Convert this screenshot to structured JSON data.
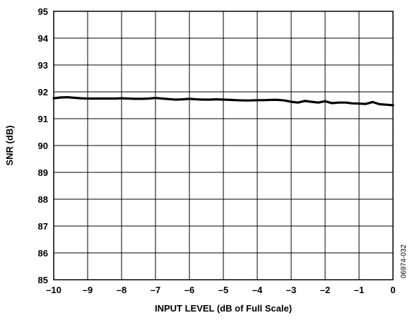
{
  "chart_data": {
    "type": "line",
    "title": "",
    "xlabel": "INPUT LEVEL (dB of Full Scale)",
    "ylabel": "SNR (dB)",
    "xlim": [
      -10,
      0
    ],
    "ylim": [
      85,
      95
    ],
    "grid": true,
    "legend": "none",
    "x_ticks": [
      -10,
      -9,
      -8,
      -7,
      -6,
      -5,
      -4,
      -3,
      -2,
      -1,
      0
    ],
    "x_tick_labels": [
      "–10",
      "–9",
      "–8",
      "–7",
      "–6",
      "–5",
      "–4",
      "–3",
      "–2",
      "–1",
      "0"
    ],
    "y_ticks": [
      85,
      86,
      87,
      88,
      89,
      90,
      91,
      92,
      93,
      94,
      95
    ],
    "y_tick_labels": [
      "85",
      "86",
      "87",
      "88",
      "89",
      "90",
      "91",
      "92",
      "93",
      "94",
      "95"
    ],
    "series": [
      {
        "color": "#000000",
        "x": [
          -10,
          -9.8,
          -9.6,
          -9.4,
          -9.2,
          -9.0,
          -8.8,
          -8.6,
          -8.4,
          -8.2,
          -8.0,
          -7.8,
          -7.6,
          -7.4,
          -7.2,
          -7.0,
          -6.8,
          -6.6,
          -6.4,
          -6.2,
          -6.0,
          -5.8,
          -5.6,
          -5.4,
          -5.2,
          -5.0,
          -4.8,
          -4.6,
          -4.4,
          -4.2,
          -4.0,
          -3.8,
          -3.6,
          -3.4,
          -3.2,
          -3.0,
          -2.8,
          -2.6,
          -2.4,
          -2.2,
          -2.0,
          -1.8,
          -1.6,
          -1.4,
          -1.2,
          -1.0,
          -0.8,
          -0.6,
          -0.4,
          -0.2,
          0
        ],
        "y": [
          91.76,
          91.79,
          91.8,
          91.78,
          91.76,
          91.75,
          91.75,
          91.75,
          91.75,
          91.75,
          91.76,
          91.75,
          91.74,
          91.74,
          91.75,
          91.77,
          91.75,
          91.73,
          91.71,
          91.72,
          91.74,
          91.72,
          91.71,
          91.71,
          91.72,
          91.71,
          91.7,
          91.69,
          91.68,
          91.68,
          91.69,
          91.69,
          91.7,
          91.7,
          91.68,
          91.63,
          91.6,
          91.66,
          91.63,
          91.6,
          91.65,
          91.58,
          91.6,
          91.6,
          91.57,
          91.56,
          91.55,
          91.62,
          91.54,
          91.52,
          91.5
        ]
      }
    ],
    "figure_id": "06974-032"
  }
}
